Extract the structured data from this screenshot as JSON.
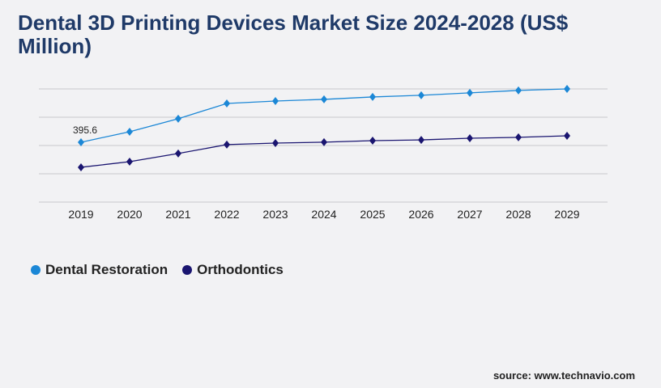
{
  "chart_data": {
    "type": "line",
    "title": "Dental 3D Printing Devices Market Size 2024-2028 (US$ Million)",
    "categories": [
      "2019",
      "2020",
      "2021",
      "2022",
      "2023",
      "2024",
      "2025",
      "2026",
      "2027",
      "2028",
      "2029"
    ],
    "series": [
      {
        "name": "Dental Restoration",
        "color": "#1b87d6",
        "values": [
          395.6,
          465,
          551,
          652,
          668,
          679,
          695,
          706,
          722,
          738,
          748
        ]
      },
      {
        "name": "Orthodontics",
        "color": "#1a1570",
        "values": [
          230,
          267,
          321,
          380,
          390,
          396,
          406,
          411,
          422,
          428,
          438
        ]
      }
    ],
    "data_labels": [
      {
        "series": 0,
        "index": 0,
        "text": "395.6"
      }
    ],
    "ylim": [
      0,
      748
    ],
    "grid": true,
    "legend": "bottom-left",
    "xlabel": "",
    "ylabel": ""
  },
  "source": "source: www.technavio.com"
}
